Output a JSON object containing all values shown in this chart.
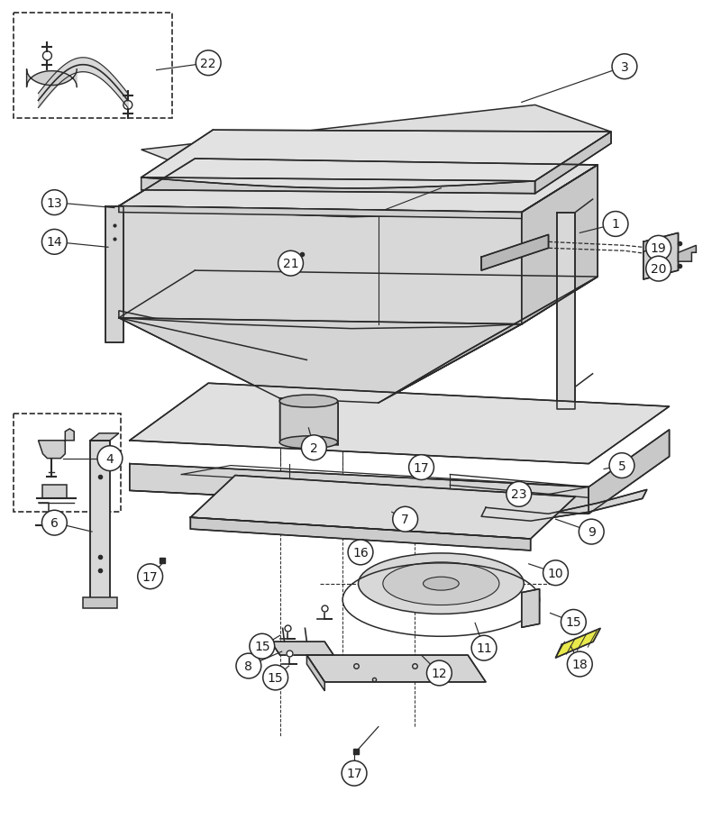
{
  "background_color": "#ffffff",
  "line_color": "#2a2a2a",
  "light_fill": "#e8e8e8",
  "mid_fill": "#d0d0d0",
  "dark_fill": "#b8b8b8",
  "label_color": "#1a1a1a",
  "callouts": [
    [
      1,
      685,
      248,
      660,
      262
    ],
    [
      2,
      348,
      498,
      348,
      476
    ],
    [
      3,
      700,
      78,
      595,
      107
    ],
    [
      4,
      118,
      512,
      60,
      527
    ],
    [
      5,
      695,
      520,
      670,
      522
    ],
    [
      6,
      62,
      580,
      100,
      594
    ],
    [
      7,
      453,
      577,
      440,
      573
    ],
    [
      8,
      278,
      740,
      315,
      728
    ],
    [
      9,
      660,
      590,
      622,
      578
    ],
    [
      10,
      618,
      635,
      590,
      628
    ],
    [
      11,
      540,
      720,
      530,
      695
    ],
    [
      12,
      488,
      748,
      470,
      730
    ],
    [
      13,
      62,
      222,
      120,
      233
    ],
    [
      14,
      62,
      263,
      130,
      275
    ],
    [
      15,
      370,
      700,
      385,
      688
    ],
    [
      15,
      293,
      718,
      308,
      706
    ],
    [
      15,
      308,
      752,
      308,
      740
    ],
    [
      16,
      403,
      613,
      410,
      605
    ],
    [
      17,
      468,
      520,
      460,
      534
    ],
    [
      17,
      168,
      640,
      178,
      624
    ],
    [
      17,
      395,
      858,
      395,
      838
    ],
    [
      18,
      647,
      737,
      635,
      722
    ],
    [
      19,
      733,
      278,
      724,
      278
    ],
    [
      20,
      733,
      300,
      728,
      300
    ],
    [
      21,
      325,
      290,
      335,
      282
    ],
    [
      22,
      228,
      68,
      170,
      72
    ],
    [
      23,
      580,
      548,
      555,
      545
    ]
  ]
}
